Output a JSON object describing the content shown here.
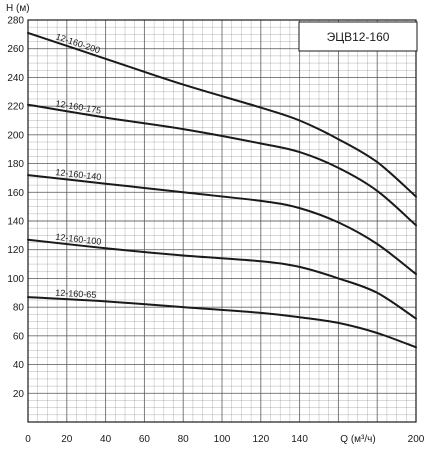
{
  "chart_data": {
    "type": "line",
    "title": "ЭЦВ12-160",
    "xlabel": "Q (м³/ч)",
    "ylabel": "H (м)",
    "xlim": [
      0,
      200
    ],
    "ylim": [
      0,
      280
    ],
    "grid": true,
    "x_ticks": [
      "0",
      "20",
      "40",
      "60",
      "80",
      "100",
      "120",
      "140",
      "160",
      "180",
      "200"
    ],
    "y_ticks": [
      "20",
      "40",
      "60",
      "80",
      "100",
      "120",
      "140",
      "160",
      "180",
      "200",
      "220",
      "240",
      "260",
      "280"
    ],
    "line_color": "#1a1a1a",
    "grid_color": "#555555",
    "series": [
      {
        "name": "12-160-200",
        "x": [
          0,
          40,
          80,
          120,
          140,
          160,
          180,
          200
        ],
        "y": [
          271,
          253,
          235,
          219,
          210,
          197,
          181,
          157
        ]
      },
      {
        "name": "12-160-175",
        "x": [
          0,
          40,
          80,
          120,
          140,
          160,
          180,
          200
        ],
        "y": [
          221,
          212,
          204,
          194,
          188,
          177,
          161,
          137
        ]
      },
      {
        "name": "12-160-140",
        "x": [
          0,
          40,
          80,
          120,
          140,
          160,
          180,
          200
        ],
        "y": [
          172,
          166,
          160,
          154,
          149,
          139,
          124,
          103
        ]
      },
      {
        "name": "12-160-100",
        "x": [
          0,
          40,
          80,
          120,
          140,
          160,
          180,
          200
        ],
        "y": [
          127,
          121,
          116,
          112,
          108,
          100,
          90,
          72
        ]
      },
      {
        "name": "12-160-65",
        "x": [
          0,
          40,
          80,
          120,
          140,
          160,
          180,
          200
        ],
        "y": [
          87,
          84,
          80,
          76,
          73,
          69,
          62,
          52
        ]
      }
    ]
  }
}
